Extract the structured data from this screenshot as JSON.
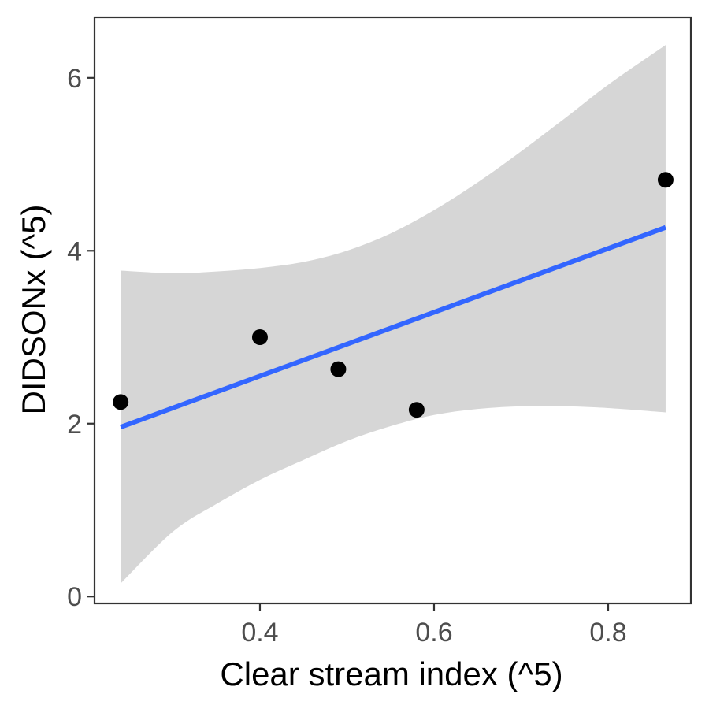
{
  "chart_data": {
    "type": "scatter",
    "title": "",
    "xlabel": "Clear stream index (^5)",
    "ylabel": "DIDSONx (^5)",
    "xlim": [
      0.21,
      0.895
    ],
    "ylim": [
      -0.08,
      6.7
    ],
    "x_ticks": [
      0.4,
      0.6,
      0.8
    ],
    "x_tick_labels": [
      "0.4",
      "0.6",
      "0.8"
    ],
    "y_ticks": [
      0,
      2,
      4,
      6
    ],
    "y_tick_labels": [
      "0",
      "2",
      "4",
      "6"
    ],
    "grid": false,
    "points": [
      {
        "x": 0.24,
        "y": 2.25
      },
      {
        "x": 0.4,
        "y": 3.0
      },
      {
        "x": 0.49,
        "y": 2.63
      },
      {
        "x": 0.58,
        "y": 2.16
      },
      {
        "x": 0.866,
        "y": 4.82
      }
    ],
    "fit_line": {
      "x": [
        0.24,
        0.866
      ],
      "y": [
        1.96,
        4.27
      ]
    },
    "confidence_band": {
      "x": [
        0.24,
        0.3,
        0.35,
        0.4,
        0.45,
        0.5,
        0.55,
        0.6,
        0.65,
        0.7,
        0.75,
        0.8,
        0.866
      ],
      "lower": [
        0.15,
        0.75,
        1.07,
        1.35,
        1.58,
        1.8,
        1.97,
        2.1,
        2.17,
        2.2,
        2.2,
        2.18,
        2.13
      ],
      "upper": [
        3.77,
        3.74,
        3.76,
        3.8,
        3.87,
        4.0,
        4.2,
        4.47,
        4.79,
        5.15,
        5.53,
        5.92,
        6.38
      ]
    },
    "colors": {
      "points": "#000000",
      "fit_line": "#3366FF",
      "band": "#D6D6D6",
      "panel_border": "#333333",
      "tick_label": "#4D4D4D"
    }
  }
}
